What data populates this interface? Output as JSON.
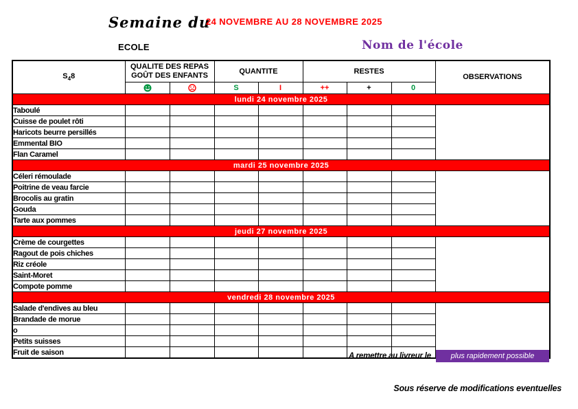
{
  "header": {
    "semaine_du": "Semaine du",
    "date_range": "24 NOVEMBRE AU 28 NOVEMBRE 2025",
    "ecole_label": "ECOLE",
    "school_name": "Nom de l'école"
  },
  "colors": {
    "banner_red": "#FF0000",
    "date_red": "#FF0000",
    "purple": "#7030A0",
    "green": "#009640"
  },
  "table": {
    "week_code": {
      "prefix": "S",
      "sub": "4",
      "suffix": "8"
    },
    "group_headers": {
      "quality_line1": "QUALITE DES REPAS",
      "quality_line2": "GOÛT DES ENFANTS",
      "quantity": "QUANTITE",
      "leftovers": "RESTES",
      "observations": "OBSERVATIONS"
    },
    "sub_headers": {
      "happy_icon": "happy-face",
      "sad_icon": "sad-face",
      "sufficient": "S",
      "insufficient": "I",
      "plus_plus": "++",
      "plus": "+",
      "zero": "0"
    },
    "days": [
      {
        "banner": "lundi 24 novembre 2025",
        "items": [
          "Taboulé",
          "Cuisse de poulet rôti",
          "Haricots beurre persillés",
          "Emmental BIO",
          "Flan Caramel"
        ]
      },
      {
        "banner": "mardi 25 novembre 2025",
        "items": [
          "Céleri rémoulade",
          "Poitrine de veau farcie",
          "Brocolis au gratin",
          "Gouda",
          "Tarte aux pommes"
        ]
      },
      {
        "banner": "jeudi 27 novembre 2025",
        "items": [
          "Crème de courgettes",
          "Ragout de pois chiches",
          "Riz créole",
          "Saint-Moret",
          "Compote pomme"
        ]
      },
      {
        "banner": "vendredi 28 novembre 2025",
        "items": [
          "Salade d'endives au bleu",
          "Brandade de morue",
          "o",
          "Petits suisses",
          "Fruit de saison"
        ]
      }
    ]
  },
  "footer": {
    "deliver_label": "A remettre au livreur le",
    "deliver_value": "plus rapidement possible",
    "disclaimer": "Sous réserve de modifications eventuelles"
  }
}
